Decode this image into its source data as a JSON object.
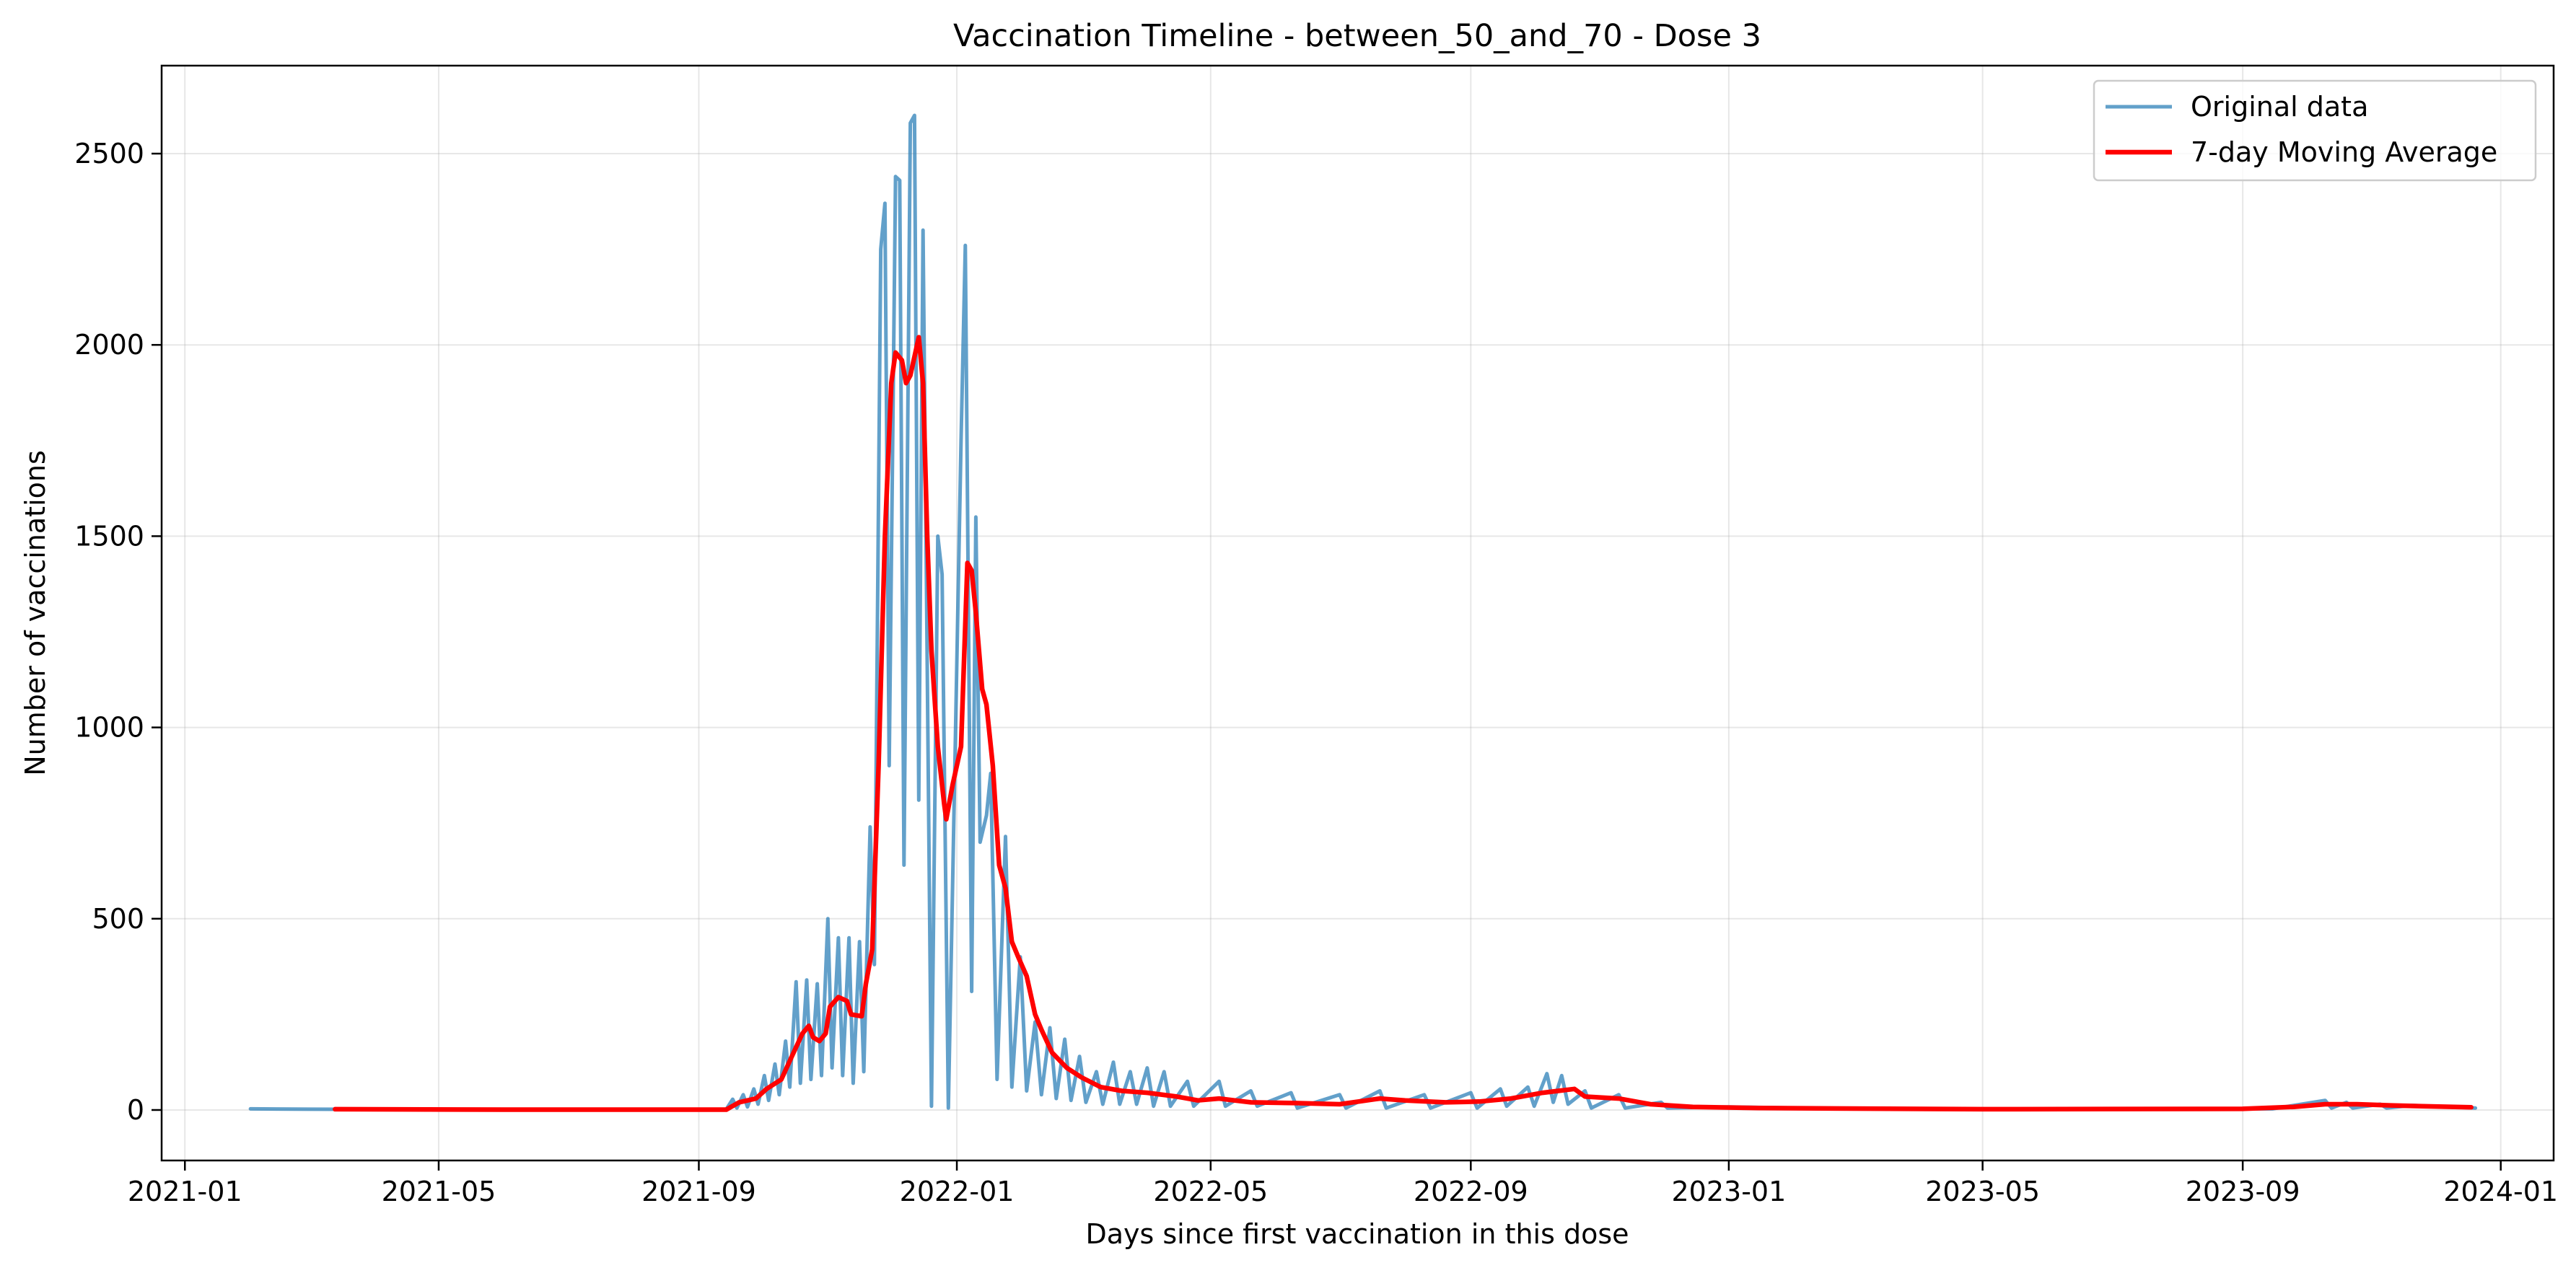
{
  "chart_data": {
    "type": "line",
    "title": "Vaccination Timeline - between_50_and_70 - Dose 3",
    "xlabel": "Days since first vaccination in this dose",
    "ylabel": "Number of vaccinations",
    "xlim": [
      "2020-12-21",
      "2024-01-26"
    ],
    "ylim": [
      -132,
      2730
    ],
    "x_ticks": [
      "2021-01",
      "2021-05",
      "2021-09",
      "2022-01",
      "2022-05",
      "2022-09",
      "2023-01",
      "2023-05",
      "2023-09",
      "2024-01"
    ],
    "y_ticks": [
      0,
      500,
      1000,
      1500,
      2000,
      2500
    ],
    "grid": true,
    "legend": "top-right",
    "series": [
      {
        "name": "Original data",
        "color": "#1f77b4",
        "points": [
          [
            "2021-02-01",
            3
          ],
          [
            "2021-03-01",
            2
          ],
          [
            "2021-06-01",
            1
          ],
          [
            "2021-09-14",
            2
          ],
          [
            "2021-09-17",
            28
          ],
          [
            "2021-09-19",
            5
          ],
          [
            "2021-09-22",
            40
          ],
          [
            "2021-09-24",
            8
          ],
          [
            "2021-09-27",
            55
          ],
          [
            "2021-09-29",
            15
          ],
          [
            "2021-10-02",
            90
          ],
          [
            "2021-10-04",
            25
          ],
          [
            "2021-10-07",
            120
          ],
          [
            "2021-10-09",
            40
          ],
          [
            "2021-10-12",
            180
          ],
          [
            "2021-10-14",
            60
          ],
          [
            "2021-10-17",
            335
          ],
          [
            "2021-10-19",
            70
          ],
          [
            "2021-10-22",
            340
          ],
          [
            "2021-10-24",
            80
          ],
          [
            "2021-10-27",
            330
          ],
          [
            "2021-10-29",
            90
          ],
          [
            "2021-11-01",
            500
          ],
          [
            "2021-11-03",
            110
          ],
          [
            "2021-11-06",
            450
          ],
          [
            "2021-11-08",
            90
          ],
          [
            "2021-11-11",
            450
          ],
          [
            "2021-11-13",
            70
          ],
          [
            "2021-11-16",
            440
          ],
          [
            "2021-11-18",
            100
          ],
          [
            "2021-11-21",
            740
          ],
          [
            "2021-11-23",
            380
          ],
          [
            "2021-11-26",
            2250
          ],
          [
            "2021-11-28",
            2370
          ],
          [
            "2021-11-30",
            900
          ],
          [
            "2021-12-03",
            2440
          ],
          [
            "2021-12-05",
            2430
          ],
          [
            "2021-12-07",
            640
          ],
          [
            "2021-12-10",
            2580
          ],
          [
            "2021-12-12",
            2600
          ],
          [
            "2021-12-14",
            810
          ],
          [
            "2021-12-16",
            2300
          ],
          [
            "2021-12-20",
            10
          ],
          [
            "2021-12-23",
            1500
          ],
          [
            "2021-12-25",
            1400
          ],
          [
            "2021-12-28",
            5
          ],
          [
            "2022-01-03",
            1750
          ],
          [
            "2022-01-05",
            2260
          ],
          [
            "2022-01-08",
            310
          ],
          [
            "2022-01-10",
            1550
          ],
          [
            "2022-01-12",
            700
          ],
          [
            "2022-01-15",
            770
          ],
          [
            "2022-01-17",
            880
          ],
          [
            "2022-01-20",
            80
          ],
          [
            "2022-01-24",
            715
          ],
          [
            "2022-01-27",
            60
          ],
          [
            "2022-01-31",
            400
          ],
          [
            "2022-02-03",
            50
          ],
          [
            "2022-02-07",
            230
          ],
          [
            "2022-02-10",
            40
          ],
          [
            "2022-02-14",
            215
          ],
          [
            "2022-02-17",
            30
          ],
          [
            "2022-02-21",
            185
          ],
          [
            "2022-02-24",
            25
          ],
          [
            "2022-02-28",
            140
          ],
          [
            "2022-03-03",
            20
          ],
          [
            "2022-03-08",
            100
          ],
          [
            "2022-03-11",
            15
          ],
          [
            "2022-03-16",
            125
          ],
          [
            "2022-03-19",
            15
          ],
          [
            "2022-03-24",
            100
          ],
          [
            "2022-03-27",
            15
          ],
          [
            "2022-04-01",
            110
          ],
          [
            "2022-04-04",
            10
          ],
          [
            "2022-04-09",
            100
          ],
          [
            "2022-04-12",
            10
          ],
          [
            "2022-04-20",
            75
          ],
          [
            "2022-04-23",
            10
          ],
          [
            "2022-05-05",
            75
          ],
          [
            "2022-05-08",
            10
          ],
          [
            "2022-05-20",
            50
          ],
          [
            "2022-05-23",
            10
          ],
          [
            "2022-06-08",
            45
          ],
          [
            "2022-06-11",
            5
          ],
          [
            "2022-07-01",
            40
          ],
          [
            "2022-07-04",
            5
          ],
          [
            "2022-07-20",
            50
          ],
          [
            "2022-07-23",
            5
          ],
          [
            "2022-08-10",
            40
          ],
          [
            "2022-08-13",
            5
          ],
          [
            "2022-09-01",
            45
          ],
          [
            "2022-09-04",
            5
          ],
          [
            "2022-09-15",
            55
          ],
          [
            "2022-09-18",
            10
          ],
          [
            "2022-09-28",
            60
          ],
          [
            "2022-10-01",
            10
          ],
          [
            "2022-10-07",
            95
          ],
          [
            "2022-10-10",
            20
          ],
          [
            "2022-10-14",
            90
          ],
          [
            "2022-10-17",
            15
          ],
          [
            "2022-10-25",
            50
          ],
          [
            "2022-10-28",
            5
          ],
          [
            "2022-11-10",
            40
          ],
          [
            "2022-11-13",
            5
          ],
          [
            "2022-11-30",
            20
          ],
          [
            "2022-12-03",
            5
          ],
          [
            "2023-01-01",
            8
          ],
          [
            "2023-03-01",
            3
          ],
          [
            "2023-06-01",
            2
          ],
          [
            "2023-09-15",
            3
          ],
          [
            "2023-10-10",
            25
          ],
          [
            "2023-10-13",
            5
          ],
          [
            "2023-10-20",
            20
          ],
          [
            "2023-10-23",
            5
          ],
          [
            "2023-11-05",
            15
          ],
          [
            "2023-11-08",
            5
          ],
          [
            "2023-11-20",
            12
          ],
          [
            "2023-12-20",
            5
          ]
        ]
      },
      {
        "name": "7-day Moving Average",
        "color": "#ff0000",
        "points": [
          [
            "2021-03-13",
            2
          ],
          [
            "2021-06-01",
            1
          ],
          [
            "2021-09-14",
            1
          ],
          [
            "2021-09-20",
            20
          ],
          [
            "2021-09-28",
            30
          ],
          [
            "2021-10-03",
            55
          ],
          [
            "2021-10-10",
            80
          ],
          [
            "2021-10-15",
            140
          ],
          [
            "2021-10-20",
            200
          ],
          [
            "2021-10-23",
            220
          ],
          [
            "2021-10-25",
            190
          ],
          [
            "2021-10-28",
            180
          ],
          [
            "2021-10-31",
            200
          ],
          [
            "2021-11-02",
            270
          ],
          [
            "2021-11-06",
            295
          ],
          [
            "2021-11-10",
            285
          ],
          [
            "2021-11-12",
            250
          ],
          [
            "2021-11-17",
            245
          ],
          [
            "2021-11-19",
            330
          ],
          [
            "2021-11-22",
            420
          ],
          [
            "2021-11-25",
            900
          ],
          [
            "2021-11-28",
            1500
          ],
          [
            "2021-12-01",
            1900
          ],
          [
            "2021-12-03",
            1980
          ],
          [
            "2021-12-06",
            1960
          ],
          [
            "2021-12-08",
            1900
          ],
          [
            "2021-12-10",
            1920
          ],
          [
            "2021-12-14",
            2020
          ],
          [
            "2021-12-16",
            1900
          ],
          [
            "2021-12-18",
            1500
          ],
          [
            "2021-12-20",
            1200
          ],
          [
            "2021-12-23",
            950
          ],
          [
            "2021-12-26",
            800
          ],
          [
            "2021-12-27",
            760
          ],
          [
            "2021-12-30",
            850
          ],
          [
            "2022-01-03",
            950
          ],
          [
            "2022-01-06",
            1430
          ],
          [
            "2022-01-08",
            1410
          ],
          [
            "2022-01-10",
            1300
          ],
          [
            "2022-01-13",
            1100
          ],
          [
            "2022-01-15",
            1060
          ],
          [
            "2022-01-18",
            900
          ],
          [
            "2022-01-21",
            640
          ],
          [
            "2022-01-24",
            580
          ],
          [
            "2022-01-27",
            440
          ],
          [
            "2022-01-30",
            400
          ],
          [
            "2022-02-03",
            350
          ],
          [
            "2022-02-07",
            250
          ],
          [
            "2022-02-10",
            210
          ],
          [
            "2022-02-15",
            150
          ],
          [
            "2022-02-22",
            110
          ],
          [
            "2022-03-01",
            85
          ],
          [
            "2022-03-10",
            60
          ],
          [
            "2022-03-20",
            50
          ],
          [
            "2022-04-01",
            45
          ],
          [
            "2022-04-15",
            35
          ],
          [
            "2022-04-25",
            25
          ],
          [
            "2022-05-05",
            30
          ],
          [
            "2022-05-20",
            20
          ],
          [
            "2022-06-10",
            18
          ],
          [
            "2022-07-01",
            15
          ],
          [
            "2022-07-20",
            30
          ],
          [
            "2022-08-01",
            25
          ],
          [
            "2022-08-20",
            20
          ],
          [
            "2022-09-05",
            22
          ],
          [
            "2022-09-20",
            30
          ],
          [
            "2022-10-05",
            45
          ],
          [
            "2022-10-20",
            55
          ],
          [
            "2022-10-25",
            35
          ],
          [
            "2022-11-10",
            30
          ],
          [
            "2022-11-25",
            15
          ],
          [
            "2022-12-15",
            8
          ],
          [
            "2023-01-15",
            5
          ],
          [
            "2023-05-01",
            2
          ],
          [
            "2023-09-01",
            3
          ],
          [
            "2023-09-25",
            8
          ],
          [
            "2023-10-10",
            15
          ],
          [
            "2023-10-25",
            15
          ],
          [
            "2023-11-10",
            12
          ],
          [
            "2023-11-25",
            10
          ],
          [
            "2023-12-18",
            7
          ]
        ]
      }
    ]
  }
}
